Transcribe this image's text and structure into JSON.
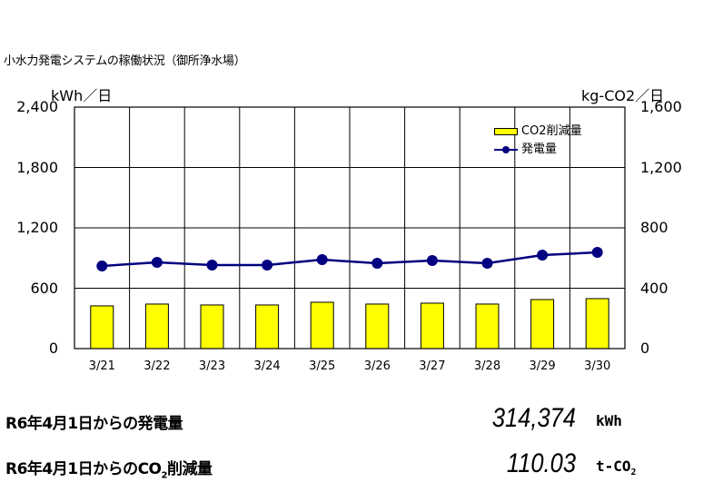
{
  "title": "小水力発電システムの稼働状況（御所浄水場）",
  "chart_data": {
    "type": "bar+line",
    "title": "小水力発電システムの稼働状況（御所浄水場）",
    "categories": [
      "3/21",
      "3/22",
      "3/23",
      "3/24",
      "3/25",
      "3/26",
      "3/27",
      "3/28",
      "3/29",
      "3/30"
    ],
    "series": [
      {
        "name": "CO2削減量",
        "type": "bar",
        "axis": "right",
        "color": "#ffff00",
        "values": [
          283,
          295,
          289,
          289,
          307,
          295,
          301,
          295,
          325,
          331
        ]
      },
      {
        "name": "発電量",
        "type": "line",
        "axis": "left",
        "color": "#000080",
        "values": [
          821,
          857,
          830,
          830,
          884,
          848,
          875,
          848,
          929,
          956
        ]
      }
    ],
    "ylabel_left": "kWh／日",
    "ylabel_right": "kg-CO2／日",
    "ylim_left": [
      0,
      2400
    ],
    "ylim_right": [
      0,
      1600
    ],
    "yticks_left": [
      "0",
      "600",
      "1,200",
      "1,800",
      "2,400"
    ],
    "yticks_right": [
      "0",
      "400",
      "800",
      "1,200",
      "1,600"
    ],
    "grid": true,
    "legend_position": "top-right-inside"
  },
  "summary": {
    "generation_label": "R6年4月1日からの発電量",
    "generation_value": "314,374",
    "generation_unit": "kWh",
    "co2_label_prefix": "R6年4月1日からのCO",
    "co2_label_sub": "2",
    "co2_label_suffix": "削減量",
    "co2_value": "110.03",
    "co2_unit_prefix": "t-CO",
    "co2_unit_sub": "2"
  }
}
